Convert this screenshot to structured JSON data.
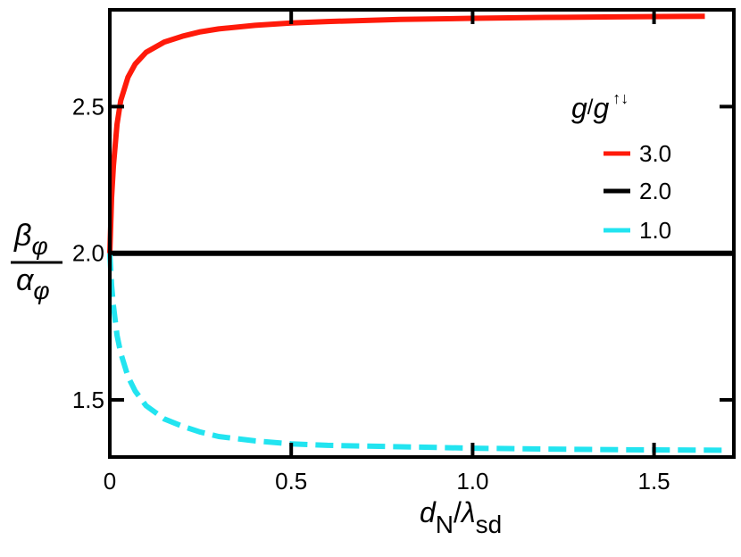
{
  "chart_data": {
    "type": "line",
    "xlabel": {
      "main": "d",
      "main_sub": "N",
      "sep": "/",
      "denom": "λ",
      "denom_sub": "sd"
    },
    "ylabel": {
      "num": "β",
      "num_sub": "φ",
      "den": "α",
      "den_sub": "φ"
    },
    "xlim": [
      0,
      1.72
    ],
    "ylim": [
      1.305,
      2.83
    ],
    "x_ticks": [
      0,
      0.5,
      1.0,
      1.5
    ],
    "x_tick_labels": [
      "0",
      "0.5",
      "1.0",
      "1.5"
    ],
    "y_ticks": [
      1.5,
      2.0,
      2.5
    ],
    "y_tick_labels": [
      "1.5",
      "2.0",
      "2.5"
    ],
    "grid": false,
    "legend": {
      "placement": "right",
      "title": {
        "g1": "g",
        "sep": "/",
        "g2": "g",
        "sup": "↑↓"
      },
      "entries": [
        "3.0",
        "2.0",
        "1.0"
      ]
    },
    "series": [
      {
        "name": "3.0",
        "color": "#ff1a0a",
        "dash": "solid",
        "x": [
          0,
          0.005,
          0.01,
          0.02,
          0.03,
          0.05,
          0.07,
          0.1,
          0.15,
          0.2,
          0.25,
          0.3,
          0.4,
          0.5,
          0.6,
          0.8,
          1.0,
          1.2,
          1.4,
          1.64
        ],
        "y": [
          2.0,
          2.19,
          2.3,
          2.44,
          2.52,
          2.6,
          2.645,
          2.685,
          2.72,
          2.74,
          2.755,
          2.765,
          2.777,
          2.785,
          2.79,
          2.797,
          2.801,
          2.804,
          2.806,
          2.808
        ]
      },
      {
        "name": "2.0",
        "color": "#000000",
        "dash": "solid",
        "x": [
          0,
          1.72
        ],
        "y": [
          2.0,
          2.0
        ]
      },
      {
        "name": "1.0",
        "color": "#22e4f0",
        "dash": "dashed",
        "x": [
          0,
          0.005,
          0.01,
          0.02,
          0.03,
          0.05,
          0.07,
          0.1,
          0.15,
          0.2,
          0.25,
          0.3,
          0.4,
          0.5,
          0.6,
          0.8,
          1.0,
          1.2,
          1.4,
          1.7
        ],
        "y": [
          2.0,
          1.89,
          1.82,
          1.72,
          1.66,
          1.58,
          1.53,
          1.48,
          1.435,
          1.41,
          1.39,
          1.375,
          1.36,
          1.35,
          1.345,
          1.34,
          1.335,
          1.332,
          1.33,
          1.328
        ]
      }
    ]
  }
}
